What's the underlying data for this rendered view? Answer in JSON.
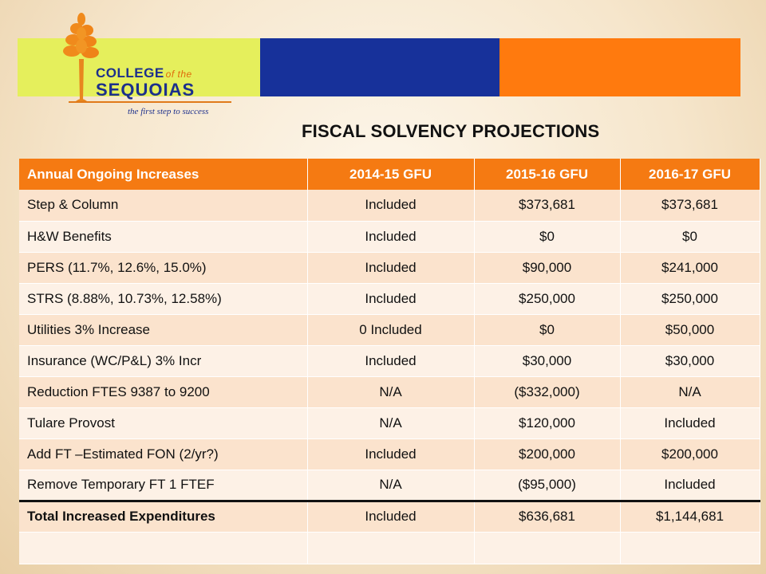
{
  "logo": {
    "college_label": "COLLEGE",
    "of_the_label": "of the",
    "name_label": "SEQUOIAS",
    "tagline": "the first step to success"
  },
  "colors": {
    "band_green": "#e5ef5c",
    "band_blue": "#17319a",
    "band_orange": "#ff7a0e",
    "header_orange": "#f57a12"
  },
  "title": "FISCAL SOLVENCY PROJECTIONS",
  "table": {
    "headers": [
      "Annual Ongoing Increases",
      "2014-15 GFU",
      "2015-16 GFU",
      "2016-17 GFU"
    ],
    "rows": [
      [
        "Step & Column",
        "Included",
        "$373,681",
        "$373,681"
      ],
      [
        "H&W Benefits",
        "Included",
        "$0",
        "$0"
      ],
      [
        "PERS (11.7%, 12.6%, 15.0%)",
        "Included",
        "$90,000",
        "$241,000"
      ],
      [
        "STRS  (8.88%, 10.73%, 12.58%)",
        "Included",
        "$250,000",
        "$250,000"
      ],
      [
        "Utilities 3% Increase",
        "0 Included",
        "$0",
        "$50,000"
      ],
      [
        "Insurance (WC/P&L) 3% Incr",
        "Included",
        "$30,000",
        "$30,000"
      ],
      [
        "Reduction FTES 9387 to 9200",
        "N/A",
        "($332,000)",
        "N/A"
      ],
      [
        "Tulare Provost",
        "N/A",
        "$120,000",
        "Included"
      ],
      [
        "Add FT –Estimated FON (2/yr?)",
        "Included",
        "$200,000",
        "$200,000"
      ],
      [
        "Remove Temporary FT 1 FTEF",
        "N/A",
        "($95,000)",
        "Included"
      ],
      [
        "Total Increased Expenditures",
        "Included",
        "$636,681",
        "$1,144,681"
      ],
      [
        "",
        "",
        "",
        ""
      ]
    ]
  }
}
